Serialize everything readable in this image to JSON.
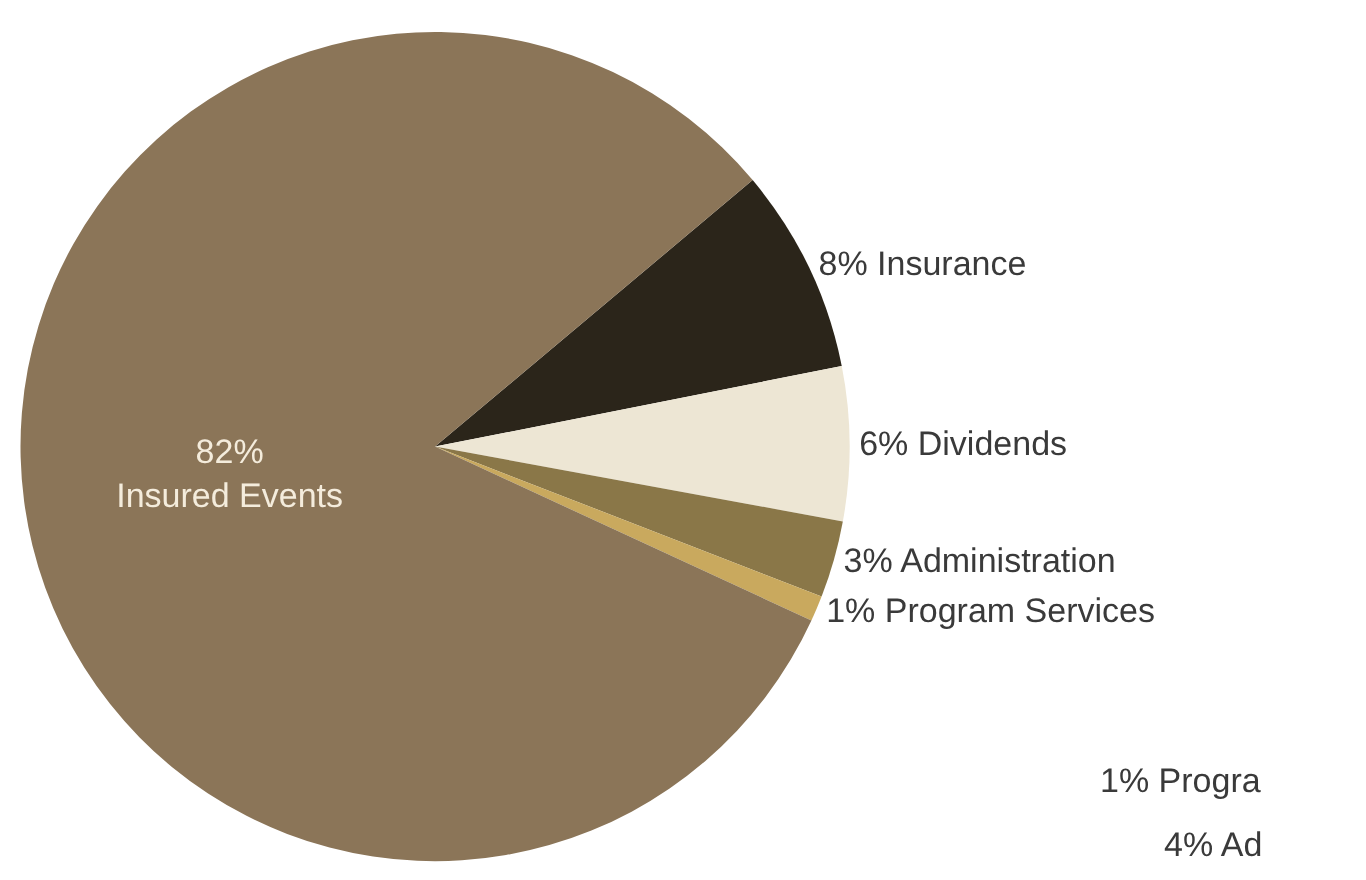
{
  "chart_data": {
    "type": "pie",
    "categories": [
      "Insurance",
      "Dividends",
      "Administration",
      "Program Services",
      "Insured Events"
    ],
    "values": [
      8,
      6,
      3,
      1,
      82
    ],
    "value_labels": [
      "8%",
      "6%",
      "3%",
      "1%",
      "82%"
    ],
    "colors": [
      "#2b251a",
      "#ede6d4",
      "#8a7748",
      "#c9a95e",
      "#8b7558"
    ],
    "annotations": [
      "1% Progra",
      "4% Ad"
    ],
    "legend": false
  }
}
